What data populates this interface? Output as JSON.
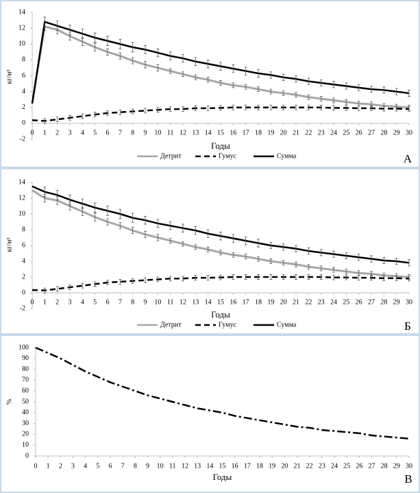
{
  "chart_data": [
    {
      "type": "line",
      "panel_label": "А",
      "xlabel": "Годы",
      "ylabel": "кг/м²",
      "x": [
        0,
        1,
        2,
        3,
        4,
        5,
        6,
        7,
        8,
        9,
        10,
        11,
        12,
        13,
        14,
        15,
        16,
        17,
        18,
        19,
        20,
        21,
        22,
        23,
        24,
        25,
        26,
        27,
        28,
        29,
        30
      ],
      "xlim": [
        0,
        30
      ],
      "xticks": [
        0,
        1,
        2,
        3,
        4,
        5,
        6,
        7,
        8,
        9,
        10,
        11,
        12,
        13,
        14,
        15,
        16,
        17,
        18,
        19,
        20,
        21,
        22,
        23,
        24,
        25,
        26,
        27,
        28,
        29,
        30
      ],
      "ylim": [
        -2,
        14
      ],
      "yticks": [
        -2,
        0,
        2,
        4,
        6,
        8,
        10,
        12,
        14
      ],
      "legend": "bottom",
      "series": [
        {
          "name": "Детрит",
          "color": "#a6a6a6",
          "dash": "solid",
          "values": [
            2.5,
            12.2,
            11.8,
            11.0,
            10.3,
            9.6,
            9.0,
            8.5,
            7.9,
            7.4,
            7.0,
            6.6,
            6.2,
            5.8,
            5.5,
            5.1,
            4.8,
            4.6,
            4.3,
            4.0,
            3.8,
            3.6,
            3.3,
            3.1,
            2.9,
            2.7,
            2.5,
            2.4,
            2.2,
            2.1,
            2.0
          ],
          "errors": [
            null,
            0.5,
            0.5,
            0.5,
            0.5,
            0.5,
            0.4,
            0.4,
            0.4,
            0.4,
            0.4,
            0.3,
            0.3,
            0.3,
            0.3,
            0.3,
            0.3,
            0.3,
            0.3,
            0.3,
            0.3,
            0.3,
            0.3,
            0.3,
            0.3,
            0.3,
            0.3,
            0.3,
            0.3,
            0.3,
            0.3
          ]
        },
        {
          "name": "Гумус",
          "color": "#000000",
          "dash": "dashed",
          "values": [
            0.4,
            0.3,
            0.5,
            0.7,
            0.9,
            1.1,
            1.3,
            1.4,
            1.5,
            1.6,
            1.7,
            1.8,
            1.8,
            1.9,
            1.9,
            1.95,
            2.0,
            2.0,
            2.0,
            2.0,
            2.0,
            2.0,
            2.0,
            2.0,
            1.95,
            1.95,
            1.9,
            1.9,
            1.85,
            1.85,
            1.8
          ],
          "errors": [
            null,
            0.3,
            0.3,
            0.3,
            0.3,
            0.3,
            0.3,
            0.3,
            0.3,
            0.3,
            0.3,
            0.3,
            0.3,
            0.3,
            0.3,
            0.3,
            0.3,
            0.3,
            0.3,
            0.3,
            0.3,
            0.3,
            0.3,
            0.3,
            0.3,
            0.3,
            0.3,
            0.3,
            0.3,
            0.3,
            0.3
          ]
        },
        {
          "name": "Сумма",
          "color": "#000000",
          "dash": "solid",
          "values": [
            2.5,
            12.8,
            12.3,
            11.8,
            11.3,
            10.8,
            10.4,
            10.0,
            9.6,
            9.3,
            8.9,
            8.5,
            8.2,
            7.8,
            7.5,
            7.2,
            6.9,
            6.6,
            6.3,
            6.1,
            5.8,
            5.6,
            5.3,
            5.1,
            4.9,
            4.7,
            4.5,
            4.3,
            4.2,
            4.0,
            3.8
          ],
          "errors": [
            null,
            0.6,
            0.6,
            0.6,
            0.6,
            0.6,
            0.6,
            0.6,
            0.6,
            0.5,
            0.5,
            0.5,
            0.5,
            0.5,
            0.5,
            0.5,
            0.5,
            0.5,
            0.5,
            0.4,
            0.4,
            0.4,
            0.4,
            0.4,
            0.4,
            0.4,
            0.4,
            0.4,
            0.4,
            0.4,
            0.4
          ]
        }
      ]
    },
    {
      "type": "line",
      "panel_label": "Б",
      "xlabel": "Годы",
      "ylabel": "кг/м²",
      "x": [
        0,
        1,
        2,
        3,
        4,
        5,
        6,
        7,
        8,
        9,
        10,
        11,
        12,
        13,
        14,
        15,
        16,
        17,
        18,
        19,
        20,
        21,
        22,
        23,
        24,
        25,
        26,
        27,
        28,
        29,
        30
      ],
      "xlim": [
        0,
        30
      ],
      "xticks": [
        0,
        1,
        2,
        3,
        4,
        5,
        6,
        7,
        8,
        9,
        10,
        11,
        12,
        13,
        14,
        15,
        16,
        17,
        18,
        19,
        20,
        21,
        22,
        23,
        24,
        25,
        26,
        27,
        28,
        29,
        30
      ],
      "ylim": [
        -2,
        14
      ],
      "yticks": [
        -2,
        0,
        2,
        4,
        6,
        8,
        10,
        12,
        14
      ],
      "legend": "bottom",
      "series": [
        {
          "name": "Детрит",
          "color": "#a6a6a6",
          "dash": "solid",
          "values": [
            13.0,
            12.0,
            11.7,
            11.0,
            10.3,
            9.6,
            9.0,
            8.5,
            7.9,
            7.4,
            7.0,
            6.6,
            6.2,
            5.8,
            5.5,
            5.1,
            4.8,
            4.6,
            4.3,
            4.0,
            3.8,
            3.6,
            3.3,
            3.1,
            2.9,
            2.7,
            2.5,
            2.4,
            2.2,
            2.1,
            2.0
          ],
          "errors": [
            null,
            0.5,
            0.5,
            0.5,
            0.5,
            0.5,
            0.4,
            0.4,
            0.4,
            0.4,
            0.4,
            0.3,
            0.3,
            0.3,
            0.3,
            0.3,
            0.3,
            0.3,
            0.3,
            0.3,
            0.3,
            0.3,
            0.3,
            0.3,
            0.3,
            0.3,
            0.3,
            0.3,
            0.3,
            0.3,
            0.3
          ]
        },
        {
          "name": "Гумус",
          "color": "#000000",
          "dash": "dashed",
          "values": [
            0.35,
            0.3,
            0.5,
            0.7,
            0.9,
            1.1,
            1.3,
            1.4,
            1.5,
            1.6,
            1.7,
            1.8,
            1.8,
            1.9,
            1.9,
            1.95,
            2.0,
            2.0,
            2.0,
            2.0,
            2.0,
            2.0,
            2.0,
            2.0,
            1.95,
            1.95,
            1.9,
            1.9,
            1.85,
            1.85,
            1.8
          ],
          "errors": [
            null,
            0.3,
            0.3,
            0.3,
            0.3,
            0.3,
            0.3,
            0.3,
            0.3,
            0.3,
            0.3,
            0.3,
            0.3,
            0.3,
            0.3,
            0.3,
            0.3,
            0.3,
            0.3,
            0.3,
            0.3,
            0.3,
            0.3,
            0.3,
            0.3,
            0.3,
            0.3,
            0.3,
            0.3,
            0.3,
            0.3
          ]
        },
        {
          "name": "Сумма",
          "color": "#000000",
          "dash": "solid",
          "values": [
            13.5,
            12.8,
            12.4,
            11.8,
            11.3,
            10.8,
            10.4,
            10.0,
            9.5,
            9.2,
            8.8,
            8.5,
            8.2,
            7.9,
            7.5,
            7.2,
            6.9,
            6.6,
            6.3,
            6.0,
            5.8,
            5.6,
            5.3,
            5.1,
            4.9,
            4.7,
            4.5,
            4.3,
            4.1,
            4.0,
            3.8
          ],
          "errors": [
            null,
            0.6,
            0.6,
            0.6,
            0.6,
            0.6,
            0.6,
            0.6,
            0.6,
            0.5,
            0.5,
            0.5,
            0.5,
            0.5,
            0.5,
            0.5,
            0.5,
            0.5,
            0.5,
            0.4,
            0.4,
            0.4,
            0.4,
            0.4,
            0.4,
            0.4,
            0.4,
            0.4,
            0.4,
            0.4,
            0.4
          ]
        }
      ]
    },
    {
      "type": "line",
      "panel_label": "В",
      "xlabel": "Годы",
      "ylabel": "%",
      "x": [
        0,
        1,
        2,
        3,
        4,
        5,
        6,
        7,
        8,
        9,
        10,
        11,
        12,
        13,
        14,
        15,
        16,
        17,
        18,
        19,
        20,
        21,
        22,
        23,
        24,
        25,
        26,
        27,
        28,
        29,
        30
      ],
      "xlim": [
        0,
        30
      ],
      "xticks": [
        0,
        1,
        2,
        3,
        4,
        5,
        6,
        7,
        8,
        9,
        10,
        11,
        12,
        13,
        14,
        15,
        16,
        17,
        18,
        19,
        20,
        21,
        22,
        23,
        24,
        25,
        26,
        27,
        28,
        29,
        30
      ],
      "ylim": [
        0,
        100
      ],
      "yticks": [
        0,
        10,
        20,
        30,
        40,
        50,
        60,
        70,
        80,
        90,
        100
      ],
      "series": [
        {
          "color": "#000000",
          "dash": "dash-dot",
          "values": [
            100,
            95,
            90,
            84,
            78,
            73,
            68,
            64,
            60,
            56,
            53,
            50,
            47,
            44,
            42,
            40,
            37,
            35,
            33,
            31,
            29,
            27,
            26,
            24,
            23,
            22,
            21,
            19,
            18,
            17,
            16
          ]
        }
      ]
    }
  ]
}
